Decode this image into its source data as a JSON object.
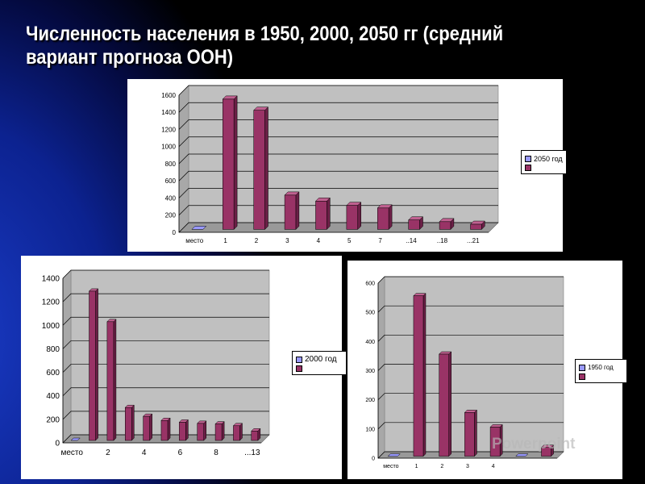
{
  "title": "Численность населения в 1950, 2000, 2050 гг (средний вариант  прогноза ООН)",
  "colors": {
    "bar": "#993366",
    "bar_dark": "#6b1f46",
    "bar_light": "#c06090",
    "series_swatch": "#9999ff",
    "plot_bg": "#c0c0c0"
  },
  "watermark": "Powerpoint",
  "chart_data": [
    {
      "type": "bar",
      "legend_label": "2050 год",
      "categories": [
        "место",
        "1",
        "2",
        "3",
        "4",
        "5",
        "7",
        "..14",
        "..18",
        "...21"
      ],
      "values": [
        0,
        1520,
        1390,
        400,
        330,
        280,
        250,
        110,
        90,
        60
      ],
      "yticks": [
        0,
        200,
        400,
        600,
        800,
        1000,
        1200,
        1400,
        1600
      ],
      "ylim": [
        0,
        1600
      ],
      "legend": "right"
    },
    {
      "type": "bar",
      "legend_label": "2000 год",
      "categories": [
        "место",
        "",
        "2",
        "",
        "4",
        "",
        "6",
        "",
        "8",
        "",
        "...13"
      ],
      "values": [
        0,
        1270,
        1010,
        280,
        205,
        170,
        155,
        145,
        140,
        125,
        80
      ],
      "yticks": [
        0,
        200,
        400,
        600,
        800,
        1000,
        1200,
        1400
      ],
      "ylim": [
        0,
        1400
      ],
      "legend": "right"
    },
    {
      "type": "bar",
      "legend_label": "1950 год",
      "categories": [
        "место",
        "1",
        "2",
        "3",
        "4",
        "",
        ""
      ],
      "values": [
        0,
        550,
        350,
        150,
        100,
        0,
        30
      ],
      "yticks": [
        0,
        100,
        200,
        300,
        400,
        500,
        600
      ],
      "ylim": [
        0,
        600
      ],
      "legend": "right"
    }
  ]
}
